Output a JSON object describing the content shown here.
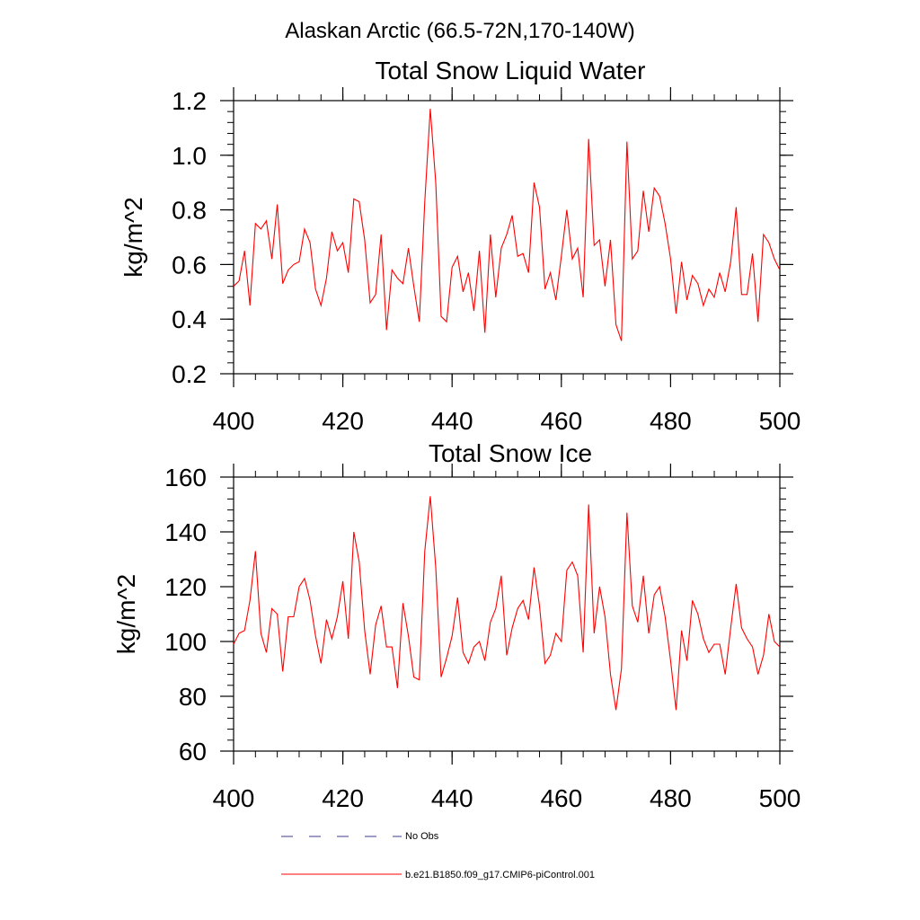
{
  "figure": {
    "title": "Alaskan Arctic (66.5-72N,170-140W)"
  },
  "legend": {
    "entries": [
      {
        "label": "No Obs",
        "color": "#3b3b8f",
        "style": "dashed"
      },
      {
        "label": "b.e21.B1850.f09_g17.CMIP6-piControl.001",
        "color": "#ff0000",
        "style": "solid"
      }
    ]
  },
  "chart_data": [
    {
      "type": "line",
      "title": "Total Snow Liquid Water",
      "xlabel": "",
      "ylabel": "kg/m^2",
      "xlim": [
        400,
        500
      ],
      "ylim": [
        0.2,
        1.2
      ],
      "xticks": [
        400,
        420,
        440,
        460,
        480,
        500
      ],
      "xtick_labels": [
        "400",
        "420",
        "440",
        "460",
        "480",
        "500"
      ],
      "yticks": [
        0.2,
        0.4,
        0.6,
        0.8,
        1.0,
        1.2
      ],
      "ytick_labels": [
        "0.2",
        "0.4",
        "0.6",
        "0.8",
        "1.0",
        "1.2"
      ],
      "series": [
        {
          "name": "b.e21.B1850.f09_g17.CMIP6-piControl.001",
          "color": "#ff0000",
          "x": [
            400,
            401,
            402,
            403,
            404,
            405,
            406,
            407,
            408,
            409,
            410,
            411,
            412,
            413,
            414,
            415,
            416,
            417,
            418,
            419,
            420,
            421,
            422,
            423,
            424,
            425,
            426,
            427,
            428,
            429,
            430,
            431,
            432,
            433,
            434,
            435,
            436,
            437,
            438,
            439,
            440,
            441,
            442,
            443,
            444,
            445,
            446,
            447,
            448,
            449,
            450,
            451,
            452,
            453,
            454,
            455,
            456,
            457,
            458,
            459,
            460,
            461,
            462,
            463,
            464,
            465,
            466,
            467,
            468,
            469,
            470,
            471,
            472,
            473,
            474,
            475,
            476,
            477,
            478,
            479,
            480,
            481,
            482,
            483,
            484,
            485,
            486,
            487,
            488,
            489,
            490,
            491,
            492,
            493,
            494,
            495,
            496,
            497,
            498,
            499,
            500
          ],
          "values": [
            0.52,
            0.54,
            0.65,
            0.45,
            0.75,
            0.73,
            0.76,
            0.62,
            0.82,
            0.53,
            0.58,
            0.6,
            0.61,
            0.73,
            0.68,
            0.51,
            0.45,
            0.55,
            0.72,
            0.65,
            0.68,
            0.57,
            0.84,
            0.83,
            0.69,
            0.46,
            0.49,
            0.71,
            0.36,
            0.58,
            0.55,
            0.53,
            0.66,
            0.52,
            0.39,
            0.83,
            1.17,
            0.9,
            0.41,
            0.39,
            0.59,
            0.63,
            0.5,
            0.57,
            0.43,
            0.65,
            0.35,
            0.71,
            0.48,
            0.66,
            0.71,
            0.78,
            0.63,
            0.64,
            0.57,
            0.9,
            0.81,
            0.51,
            0.57,
            0.47,
            0.63,
            0.8,
            0.62,
            0.66,
            0.48,
            1.06,
            0.67,
            0.69,
            0.52,
            0.69,
            0.38,
            0.32,
            1.05,
            0.62,
            0.65,
            0.87,
            0.72,
            0.88,
            0.85,
            0.75,
            0.62,
            0.42,
            0.61,
            0.47,
            0.56,
            0.53,
            0.45,
            0.51,
            0.48,
            0.57,
            0.5,
            0.61,
            0.81,
            0.49,
            0.49,
            0.64,
            0.39,
            0.71,
            0.68,
            0.62,
            0.58
          ]
        }
      ]
    },
    {
      "type": "line",
      "title": "Total Snow Ice",
      "xlabel": "",
      "ylabel": "kg/m^2",
      "xlim": [
        400,
        500
      ],
      "ylim": [
        60,
        160
      ],
      "xticks": [
        400,
        420,
        440,
        460,
        480,
        500
      ],
      "xtick_labels": [
        "400",
        "420",
        "440",
        "460",
        "480",
        "500"
      ],
      "yticks": [
        60,
        80,
        100,
        120,
        140,
        160
      ],
      "ytick_labels": [
        "60",
        "80",
        "100",
        "120",
        "140",
        "160"
      ],
      "series": [
        {
          "name": "b.e21.B1850.f09_g17.CMIP6-piControl.001",
          "color": "#ff0000",
          "x": [
            400,
            401,
            402,
            403,
            404,
            405,
            406,
            407,
            408,
            409,
            410,
            411,
            412,
            413,
            414,
            415,
            416,
            417,
            418,
            419,
            420,
            421,
            422,
            423,
            424,
            425,
            426,
            427,
            428,
            429,
            430,
            431,
            432,
            433,
            434,
            435,
            436,
            437,
            438,
            439,
            440,
            441,
            442,
            443,
            444,
            445,
            446,
            447,
            448,
            449,
            450,
            451,
            452,
            453,
            454,
            455,
            456,
            457,
            458,
            459,
            460,
            461,
            462,
            463,
            464,
            465,
            466,
            467,
            468,
            469,
            470,
            471,
            472,
            473,
            474,
            475,
            476,
            477,
            478,
            479,
            480,
            481,
            482,
            483,
            484,
            485,
            486,
            487,
            488,
            489,
            490,
            491,
            492,
            493,
            494,
            495,
            496,
            497,
            498,
            499,
            500
          ],
          "values": [
            99,
            103,
            104,
            115,
            133,
            103,
            96,
            112,
            110,
            89,
            109,
            109,
            120,
            123,
            115,
            102,
            92,
            108,
            101,
            109,
            122,
            101,
            140,
            129,
            104,
            88,
            106,
            113,
            98,
            98,
            83,
            114,
            102,
            87,
            86,
            133,
            153,
            127,
            87,
            94,
            102,
            116,
            96,
            92,
            98,
            100,
            93,
            107,
            112,
            124,
            95,
            105,
            112,
            115,
            108,
            127,
            113,
            92,
            95,
            103,
            100,
            126,
            129,
            124,
            96,
            150,
            103,
            120,
            109,
            88,
            75,
            90,
            147,
            113,
            107,
            124,
            103,
            117,
            120,
            109,
            93,
            75,
            104,
            93,
            115,
            110,
            101,
            96,
            99,
            99,
            88,
            105,
            121,
            105,
            101,
            98,
            88,
            95,
            110,
            100,
            98
          ]
        }
      ]
    }
  ]
}
